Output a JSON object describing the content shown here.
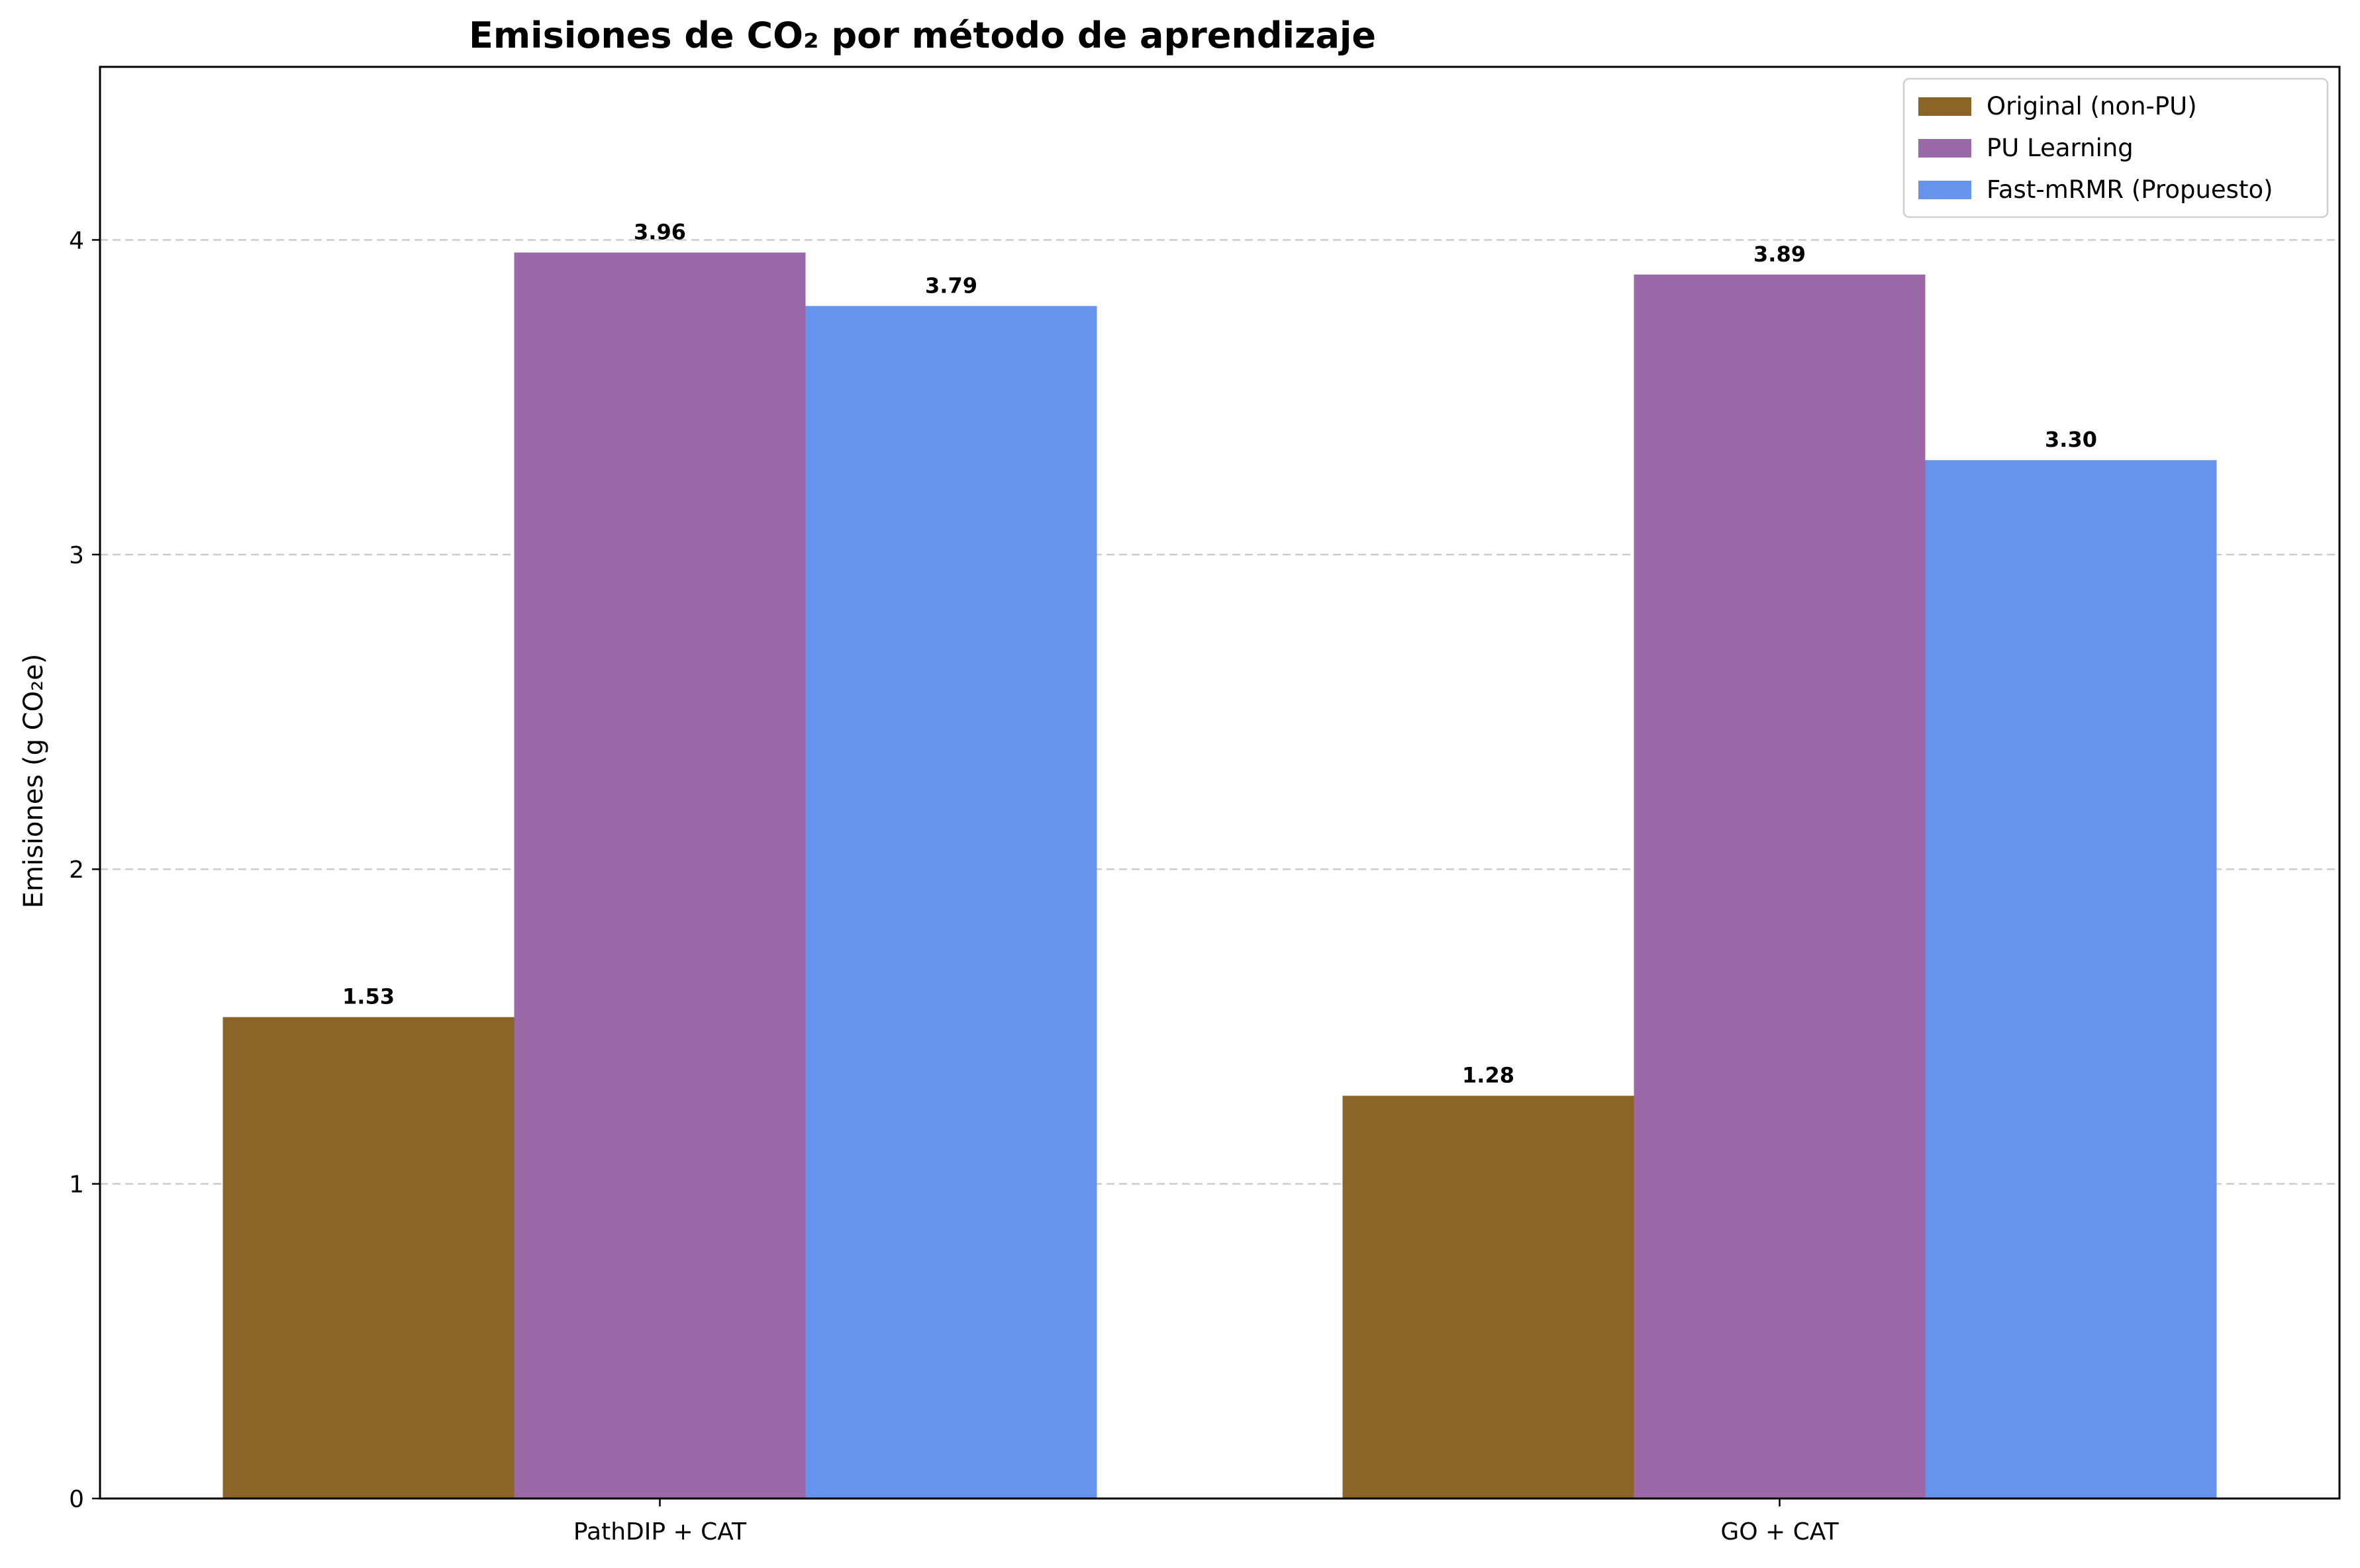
{
  "chart_data": {
    "type": "bar",
    "title": "Emisiones de CO₂ por método de aprendizaje",
    "xlabel": "",
    "ylabel": "Emisiones (g CO₂e)",
    "categories": [
      "PathDIP + CAT",
      "GO + CAT"
    ],
    "series": [
      {
        "name": "Original (non-PU)",
        "color": "#8B6428",
        "values": [
          1.53,
          1.28
        ],
        "labels": [
          "1.53",
          "1.28"
        ]
      },
      {
        "name": "PU Learning",
        "color": "#9B69A8",
        "values": [
          3.96,
          3.89
        ],
        "labels": [
          "3.96",
          "3.89"
        ]
      },
      {
        "name": "Fast-mRMR (Propuesto)",
        "color": "#6694EC",
        "values": [
          3.79,
          3.3
        ],
        "labels": [
          "3.79",
          "3.30"
        ]
      }
    ],
    "ylim": [
      0,
      4.55
    ],
    "yticks": [
      0,
      1,
      2,
      3,
      4
    ],
    "grid": "y-dashed",
    "legend_position": "top-right"
  }
}
